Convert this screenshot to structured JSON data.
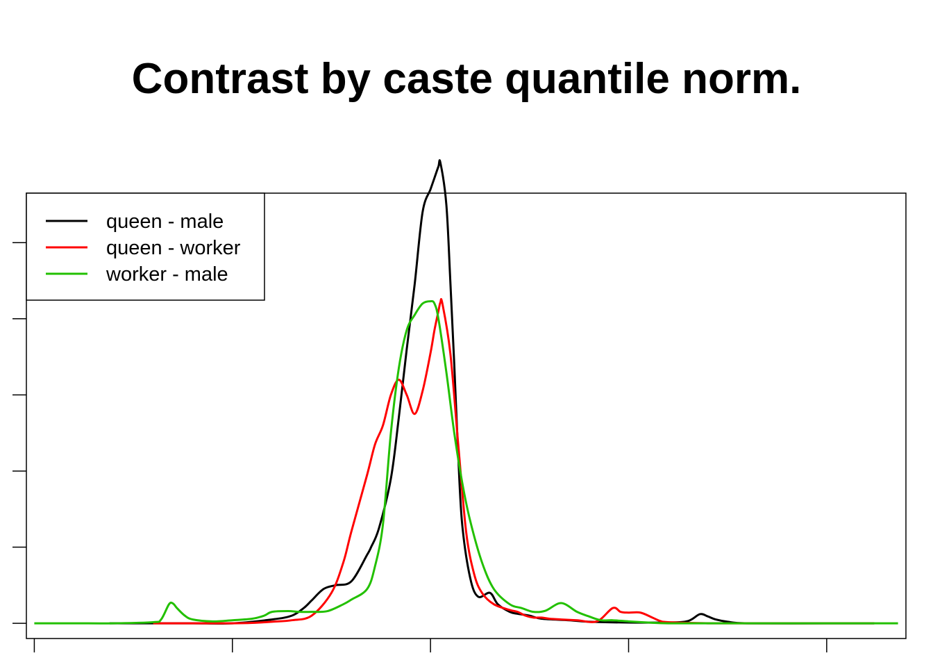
{
  "chart_data": {
    "type": "line",
    "title": "Contrast by caste quantile norm.",
    "xlabel": "",
    "ylabel": "",
    "xlim": [
      -10.2,
      12
    ],
    "ylim": [
      -0.04,
      1.13
    ],
    "x_ticks": [
      -10,
      -5,
      0,
      5,
      10
    ],
    "y_ticks": [
      0,
      0.2,
      0.4,
      0.6,
      0.8,
      1.0,
      1.2
    ],
    "tick_labels_shown": false,
    "legend_position": "top-left",
    "grid": false,
    "series": [
      {
        "name": "queen - male",
        "color": "#000000",
        "x": [
          -8.1,
          -7.0,
          -6.0,
          -5.0,
          -4.0,
          -3.5,
          -3.2,
          -3.0,
          -2.7,
          -2.4,
          -2.0,
          -1.6,
          -1.5,
          -1.3,
          -1.0,
          -0.8,
          -0.6,
          -0.4,
          -0.2,
          0.0,
          0.1,
          0.2,
          0.25,
          0.4,
          0.5,
          0.6,
          0.7,
          0.8,
          1.0,
          1.2,
          1.5,
          1.7,
          2.0,
          2.2,
          2.5,
          2.8,
          3.5,
          4.0,
          5.0,
          6.0,
          6.5,
          6.8,
          7.0,
          7.2,
          7.5,
          8.0,
          10.0,
          11.2
        ],
        "y": [
          0.0,
          0.0,
          0.0,
          0.0,
          0.01,
          0.02,
          0.04,
          0.06,
          0.09,
          0.1,
          0.11,
          0.18,
          0.2,
          0.25,
          0.38,
          0.54,
          0.72,
          0.89,
          1.08,
          1.14,
          1.17,
          1.2,
          1.21,
          1.1,
          0.9,
          0.68,
          0.44,
          0.26,
          0.12,
          0.07,
          0.08,
          0.05,
          0.03,
          0.025,
          0.02,
          0.012,
          0.008,
          0.004,
          0.002,
          0.002,
          0.006,
          0.024,
          0.018,
          0.01,
          0.004,
          0.0,
          0.0,
          0.0
        ]
      },
      {
        "name": "queen - worker",
        "color": "#ff0000",
        "x": [
          -7.0,
          -6.0,
          -5.0,
          -4.5,
          -4.0,
          -3.5,
          -3.0,
          -2.5,
          -2.2,
          -2.0,
          -1.6,
          -1.4,
          -1.2,
          -1.0,
          -0.8,
          -0.6,
          -0.4,
          -0.2,
          0.0,
          0.1,
          0.2,
          0.25,
          0.3,
          0.5,
          0.7,
          0.9,
          1.1,
          1.3,
          1.6,
          2.0,
          2.2,
          2.4,
          2.6,
          2.8,
          3.0,
          3.3,
          3.7,
          4.2,
          4.6,
          4.8,
          5.0,
          5.3,
          5.6,
          5.8,
          6.0,
          7.0,
          9.0,
          11.2
        ],
        "y": [
          0.0,
          0.0,
          0.0,
          0.001,
          0.004,
          0.008,
          0.02,
          0.08,
          0.16,
          0.24,
          0.39,
          0.47,
          0.52,
          0.6,
          0.64,
          0.6,
          0.55,
          0.61,
          0.71,
          0.77,
          0.82,
          0.843,
          0.84,
          0.71,
          0.47,
          0.24,
          0.13,
          0.08,
          0.05,
          0.035,
          0.03,
          0.02,
          0.015,
          0.015,
          0.012,
          0.01,
          0.008,
          0.005,
          0.04,
          0.03,
          0.028,
          0.028,
          0.015,
          0.006,
          0.003,
          0.0,
          0.0,
          0.0
        ]
      },
      {
        "name": "worker - male",
        "color": "#22c000",
        "x": [
          -10.0,
          -9.0,
          -8.0,
          -7.0,
          -6.8,
          -6.6,
          -6.5,
          -6.4,
          -6.2,
          -6.0,
          -5.5,
          -5.0,
          -4.5,
          -4.2,
          -4.0,
          -3.6,
          -3.3,
          -3.0,
          -2.6,
          -2.2,
          -2.0,
          -1.6,
          -1.4,
          -1.2,
          -1.0,
          -0.8,
          -0.6,
          -0.4,
          -0.2,
          0.0,
          0.1,
          0.2,
          0.4,
          0.6,
          0.8,
          1.0,
          1.3,
          1.6,
          2.0,
          2.3,
          2.6,
          2.9,
          3.3,
          3.7,
          4.0,
          4.3,
          4.6,
          5.0,
          5.5,
          6.0,
          7.0,
          9.0,
          11.8
        ],
        "y": [
          0.0,
          0.0,
          0.0,
          0.003,
          0.01,
          0.05,
          0.052,
          0.04,
          0.02,
          0.01,
          0.005,
          0.008,
          0.012,
          0.02,
          0.03,
          0.032,
          0.03,
          0.03,
          0.032,
          0.05,
          0.062,
          0.09,
          0.15,
          0.26,
          0.5,
          0.67,
          0.77,
          0.81,
          0.84,
          0.846,
          0.84,
          0.8,
          0.66,
          0.5,
          0.37,
          0.27,
          0.16,
          0.09,
          0.05,
          0.04,
          0.03,
          0.033,
          0.053,
          0.03,
          0.018,
          0.008,
          0.008,
          0.005,
          0.002,
          0.0,
          0.0,
          0.0,
          0.0
        ]
      }
    ]
  }
}
